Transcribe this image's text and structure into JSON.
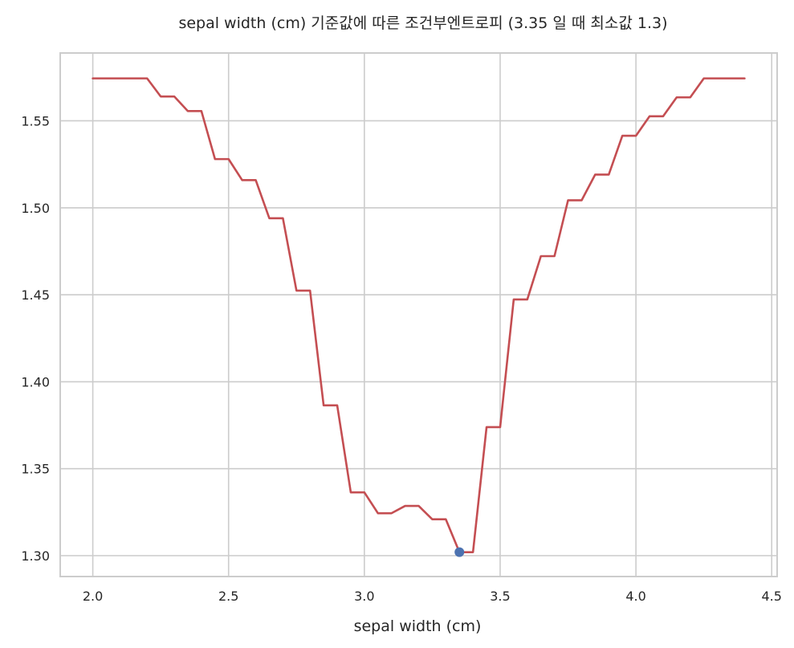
{
  "chart_data": {
    "type": "line",
    "title": "sepal width (cm) 기준값에 따른 조건부엔트로피 (3.35 일 때 최소값 1.3)",
    "xlabel": "sepal width (cm)",
    "ylabel": "",
    "xlim": [
      1.88,
      4.52
    ],
    "ylim": [
      1.288,
      1.589
    ],
    "xticks": [
      2.0,
      2.5,
      3.0,
      3.5,
      4.0,
      4.5
    ],
    "xtick_labels": [
      "2.0",
      "2.5",
      "3.0",
      "3.5",
      "4.0",
      "4.5"
    ],
    "yticks": [
      1.3,
      1.35,
      1.4,
      1.45,
      1.5,
      1.55
    ],
    "ytick_labels": [
      "1.30",
      "1.35",
      "1.40",
      "1.45",
      "1.50",
      "1.55"
    ],
    "grid": true,
    "series": [
      {
        "color": "#c44e52",
        "x": [
          2.0,
          2.05,
          2.1,
          2.15,
          2.2,
          2.25,
          2.3,
          2.35,
          2.4,
          2.45,
          2.5,
          2.55,
          2.6,
          2.65,
          2.7,
          2.75,
          2.8,
          2.85,
          2.9,
          2.95,
          3.0,
          3.05,
          3.1,
          3.15,
          3.2,
          3.25,
          3.3,
          3.35,
          3.4,
          3.45,
          3.5,
          3.55,
          3.6,
          3.65,
          3.7,
          3.75,
          3.8,
          3.85,
          3.9,
          3.95,
          4.0,
          4.05,
          4.1,
          4.15,
          4.2,
          4.25,
          4.3,
          4.35,
          4.4
        ],
        "y": [
          1.5744,
          1.5744,
          1.5744,
          1.5744,
          1.5744,
          1.564,
          1.564,
          1.5556,
          1.5556,
          1.528,
          1.528,
          1.5159,
          1.5159,
          1.494,
          1.494,
          1.4524,
          1.4524,
          1.3864,
          1.3864,
          1.3364,
          1.3364,
          1.3244,
          1.3244,
          1.3286,
          1.3286,
          1.3209,
          1.3209,
          1.302,
          1.302,
          1.3739,
          1.3739,
          1.4473,
          1.4473,
          1.4722,
          1.4722,
          1.5043,
          1.5043,
          1.5191,
          1.5191,
          1.5414,
          1.5414,
          1.5526,
          1.5526,
          1.5635,
          1.5635,
          1.5744,
          1.5744,
          1.5744,
          1.5744
        ]
      }
    ],
    "marker": {
      "x": 3.35,
      "y": 1.302,
      "color": "#4c72b0"
    }
  }
}
